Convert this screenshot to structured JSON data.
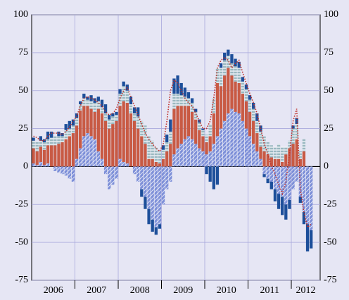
{
  "chart_data": {
    "type": "bar",
    "stacked": true,
    "ylim": [
      -75,
      100
    ],
    "yticks": [
      -75,
      -50,
      -25,
      0,
      25,
      50,
      75,
      100
    ],
    "grid": true,
    "year_labels": [
      "2006",
      "2007",
      "2008",
      "2009",
      "2010",
      "2011",
      "2012"
    ],
    "categories": [
      null,
      null,
      null,
      null,
      null,
      null,
      null,
      null,
      null,
      null,
      null,
      null,
      null,
      null,
      null,
      null,
      null,
      null,
      null,
      null,
      null,
      null,
      null,
      null,
      null,
      null,
      null,
      null,
      null,
      null,
      null,
      null,
      null,
      null,
      null,
      null,
      null,
      null,
      null,
      null,
      null,
      null,
      null,
      null,
      null,
      null,
      null,
      null,
      null,
      null,
      null,
      null,
      null,
      null,
      null,
      null,
      null,
      null,
      null,
      null,
      null,
      null,
      null,
      null,
      null,
      null,
      null,
      null,
      null,
      null,
      null,
      null,
      null,
      null,
      null,
      null,
      null,
      null
    ],
    "series": [
      {
        "color": "#7d8fd8",
        "hatch": true,
        "values": [
          2,
          1,
          3,
          1,
          2,
          0,
          -3,
          -4,
          -5,
          -6,
          -8,
          -10,
          5,
          12,
          20,
          22,
          20,
          18,
          10,
          5,
          -5,
          -15,
          -12,
          -8,
          5,
          3,
          2,
          0,
          -5,
          -10,
          -15,
          -20,
          -28,
          -35,
          -40,
          -38,
          -25,
          -15,
          -10,
          8,
          12,
          15,
          18,
          20,
          18,
          15,
          12,
          10,
          8,
          10,
          15,
          20,
          25,
          30,
          35,
          38,
          36,
          35,
          30,
          25,
          20,
          15,
          10,
          5,
          -5,
          -8,
          -10,
          -15,
          -18,
          -20,
          -25,
          -22,
          -15,
          -10,
          -20,
          -30,
          -38,
          -42
        ]
      },
      {
        "color": "#c85a44",
        "hatch": false,
        "values": [
          10,
          9,
          10,
          10,
          12,
          14,
          14,
          15,
          16,
          18,
          20,
          22,
          22,
          25,
          20,
          18,
          18,
          18,
          28,
          30,
          30,
          25,
          28,
          30,
          35,
          40,
          40,
          35,
          30,
          25,
          20,
          15,
          5,
          5,
          3,
          2,
          5,
          10,
          15,
          30,
          28,
          25,
          22,
          20,
          18,
          16,
          12,
          10,
          8,
          10,
          20,
          35,
          28,
          30,
          30,
          22,
          20,
          20,
          18,
          18,
          16,
          15,
          12,
          8,
          10,
          8,
          6,
          5,
          5,
          3,
          8,
          12,
          15,
          18,
          5,
          10,
          0,
          0
        ]
      },
      {
        "color": "#9ab8c0",
        "hatch": true,
        "values": [
          5,
          6,
          4,
          5,
          4,
          5,
          6,
          5,
          4,
          6,
          5,
          5,
          5,
          4,
          5,
          4,
          5,
          6,
          5,
          4,
          5,
          6,
          5,
          4,
          8,
          10,
          8,
          6,
          5,
          8,
          10,
          12,
          15,
          12,
          10,
          8,
          6,
          6,
          8,
          10,
          8,
          7,
          6,
          5,
          6,
          5,
          5,
          4,
          5,
          8,
          10,
          10,
          12,
          10,
          8,
          8,
          10,
          10,
          8,
          8,
          8,
          8,
          8,
          10,
          10,
          8,
          8,
          8,
          10,
          10,
          5,
          5,
          10,
          10,
          5,
          8,
          0,
          0
        ]
      },
      {
        "color": "#1d4f9a",
        "hatch": false,
        "values": [
          2,
          0,
          3,
          2,
          5,
          4,
          0,
          3,
          2,
          4,
          5,
          4,
          3,
          2,
          3,
          2,
          4,
          3,
          3,
          5,
          6,
          3,
          2,
          2,
          3,
          3,
          4,
          5,
          4,
          6,
          -5,
          -8,
          -10,
          -8,
          -5,
          -3,
          3,
          5,
          8,
          10,
          12,
          8,
          6,
          4,
          3,
          2,
          2,
          1,
          -5,
          -10,
          -15,
          -12,
          3,
          5,
          4,
          6,
          5,
          4,
          3,
          3,
          3,
          4,
          5,
          4,
          -2,
          -3,
          -5,
          -8,
          -10,
          -12,
          -10,
          -6,
          2,
          4,
          -4,
          -8,
          -18,
          -12
        ]
      },
      {
        "type": "line",
        "color": "#c0302a",
        "values": [
          20,
          19,
          17,
          17,
          20,
          22,
          22,
          22,
          21,
          23,
          26,
          30,
          33,
          40,
          45,
          46,
          45,
          44,
          42,
          40,
          36,
          34,
          35,
          38,
          45,
          50,
          52,
          46,
          40,
          34,
          28,
          22,
          18,
          15,
          12,
          10,
          15,
          30,
          50,
          57,
          55,
          50,
          45,
          42,
          40,
          35,
          30,
          25,
          25,
          30,
          45,
          65,
          70,
          72,
          70,
          65,
          68,
          70,
          62,
          55,
          48,
          42,
          35,
          25,
          15,
          8,
          0,
          -5,
          -12,
          -18,
          -10,
          8,
          30,
          38,
          -15,
          -30,
          -40,
          -38
        ]
      }
    ]
  }
}
